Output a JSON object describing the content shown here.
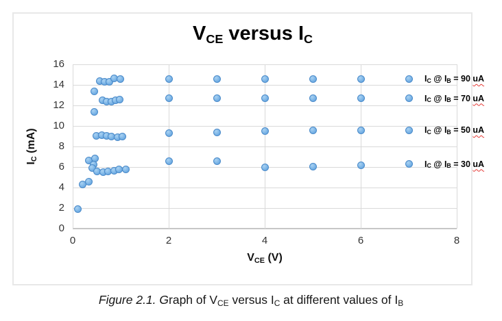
{
  "chart_data": {
    "type": "scatter",
    "title_parts": {
      "main": "V",
      "sub": "CE",
      "mid": " versus I",
      "sub2": "C"
    },
    "xlabel_parts": {
      "main": "V",
      "sub": "CE",
      "rest": " (V)"
    },
    "ylabel_parts": {
      "main": "I",
      "sub": "C",
      "rest": " (mA)"
    },
    "xlim": [
      0,
      8
    ],
    "ylim": [
      0,
      16
    ],
    "x_ticks": [
      0,
      2,
      4,
      6,
      8
    ],
    "y_ticks": [
      0,
      2,
      4,
      6,
      8,
      10,
      12,
      14,
      16
    ],
    "grid": true,
    "legend_position": "data-labels-right-of-last-point",
    "series_label_parts": {
      "p1": "I",
      "s1": "C",
      "p2": " @ I",
      "s2": "B",
      "p3": " = ",
      "sep": " ",
      "unit": "uA"
    },
    "colors": {
      "marker_fill": "#6FACE3",
      "marker_highlight": "#A9D2F2",
      "marker_border": "#4A8AC9",
      "gridline": "#D9D9D9",
      "axis_line": "#C6C6C6",
      "squiggle": "#E53935",
      "chart_border": "#E8E8E8"
    },
    "series": [
      {
        "name": "Ic @ Ib = 90 uA",
        "ib_value": "90",
        "label_anchor_mA": 14.6,
        "points": [
          [
            0.45,
            13.35
          ],
          [
            0.56,
            14.35
          ],
          [
            0.66,
            14.3
          ],
          [
            0.76,
            14.3
          ],
          [
            0.86,
            14.65
          ],
          [
            0.99,
            14.6
          ],
          [
            2,
            14.6
          ],
          [
            3,
            14.6
          ],
          [
            4,
            14.6
          ],
          [
            5,
            14.6
          ],
          [
            6,
            14.6
          ],
          [
            7,
            14.6
          ]
        ]
      },
      {
        "name": "Ic @ Ib = 70 uA",
        "ib_value": "70",
        "label_anchor_mA": 12.7,
        "points": [
          [
            0.45,
            11.35
          ],
          [
            0.62,
            12.5
          ],
          [
            0.7,
            12.4
          ],
          [
            0.8,
            12.4
          ],
          [
            0.89,
            12.5
          ],
          [
            0.98,
            12.6
          ],
          [
            2,
            12.7
          ],
          [
            3,
            12.7
          ],
          [
            4,
            12.7
          ],
          [
            5,
            12.7
          ],
          [
            6,
            12.7
          ],
          [
            7,
            12.7
          ]
        ]
      },
      {
        "name": "Ic @ Ib = 50 uA",
        "ib_value": "50",
        "label_anchor_mA": 9.6,
        "points": [
          [
            0.49,
            9.05
          ],
          [
            0.6,
            9.1
          ],
          [
            0.7,
            9.05
          ],
          [
            0.81,
            8.95
          ],
          [
            0.93,
            8.9
          ],
          [
            1.03,
            8.95
          ],
          [
            2,
            9.3
          ],
          [
            3,
            9.4
          ],
          [
            4,
            9.5
          ],
          [
            5,
            9.55
          ],
          [
            6,
            9.6
          ],
          [
            7,
            9.6
          ]
        ]
      },
      {
        "name": "Ic @ Ib = 30 uA",
        "ib_value": "30",
        "label_anchor_mA": 6.3,
        "points": [
          [
            0.11,
            1.9
          ],
          [
            0.21,
            4.3
          ],
          [
            0.34,
            4.6
          ],
          [
            0.33,
            6.65
          ],
          [
            0.46,
            6.85
          ],
          [
            0.43,
            6.25
          ],
          [
            0.4,
            5.9
          ],
          [
            0.51,
            5.6
          ],
          [
            0.63,
            5.5
          ],
          [
            0.74,
            5.55
          ],
          [
            0.86,
            5.65
          ],
          [
            0.97,
            5.75
          ],
          [
            1.1,
            5.8
          ],
          [
            2,
            6.55
          ],
          [
            3,
            6.55
          ],
          [
            4,
            5.95
          ],
          [
            5,
            6.05
          ],
          [
            6,
            6.2
          ],
          [
            7,
            6.3
          ]
        ]
      }
    ]
  },
  "caption_parts": {
    "italic": "Figure 2.1. G",
    "r1": "raph of V",
    "s1": "CE",
    "r2": " versus I",
    "s2": "C",
    "r3": " at different values of I",
    "s3": "B"
  }
}
